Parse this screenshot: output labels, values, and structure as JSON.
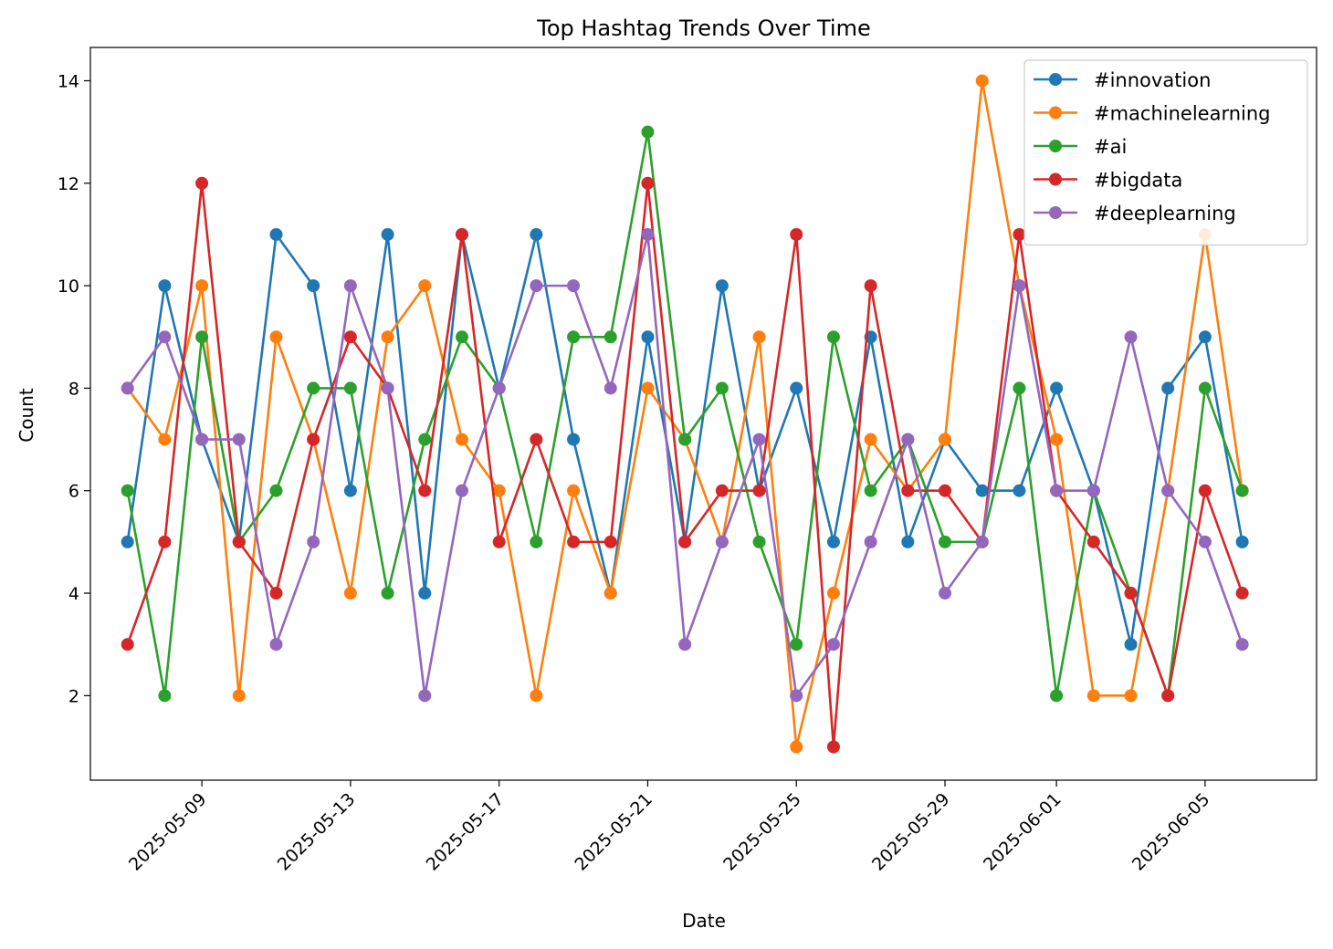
{
  "chart_data": {
    "type": "line",
    "title": "Top Hashtag Trends Over Time",
    "xlabel": "Date",
    "ylabel": "Count",
    "x": [
      "2025-05-07",
      "2025-05-08",
      "2025-05-09",
      "2025-05-10",
      "2025-05-11",
      "2025-05-12",
      "2025-05-13",
      "2025-05-14",
      "2025-05-15",
      "2025-05-16",
      "2025-05-17",
      "2025-05-18",
      "2025-05-19",
      "2025-05-20",
      "2025-05-21",
      "2025-05-22",
      "2025-05-23",
      "2025-05-24",
      "2025-05-25",
      "2025-05-26",
      "2025-05-27",
      "2025-05-28",
      "2025-05-29",
      "2025-05-30",
      "2025-05-31",
      "2025-06-01",
      "2025-06-02",
      "2025-06-03",
      "2025-06-04",
      "2025-06-05",
      "2025-06-06"
    ],
    "xticks": [
      "2025-05-09",
      "2025-05-13",
      "2025-05-17",
      "2025-05-21",
      "2025-05-25",
      "2025-05-29",
      "2025-06-01",
      "2025-06-05"
    ],
    "xlim": [
      "2025-05-06",
      "2025-06-08"
    ],
    "yticks": [
      2,
      4,
      6,
      8,
      10,
      12,
      14
    ],
    "ylim": [
      0.35,
      14.65
    ],
    "grid": false,
    "legend_position": "top-right",
    "series": [
      {
        "name": "#innovation",
        "color": "#1f77b4",
        "values": [
          5,
          10,
          7,
          5,
          11,
          10,
          6,
          11,
          4,
          11,
          8,
          11,
          7,
          4,
          9,
          5,
          10,
          6,
          8,
          5,
          9,
          5,
          7,
          6,
          6,
          8,
          6,
          3,
          8,
          9,
          5
        ]
      },
      {
        "name": "#machinelearning",
        "color": "#ff7f0e",
        "values": [
          8,
          7,
          10,
          2,
          9,
          7,
          4,
          9,
          10,
          7,
          6,
          2,
          6,
          4,
          8,
          7,
          5,
          9,
          1,
          4,
          7,
          6,
          7,
          14,
          10,
          7,
          2,
          2,
          6,
          11,
          6
        ]
      },
      {
        "name": "#ai",
        "color": "#2ca02c",
        "values": [
          6,
          2,
          9,
          5,
          6,
          8,
          8,
          4,
          7,
          9,
          8,
          5,
          9,
          9,
          13,
          7,
          8,
          5,
          3,
          9,
          6,
          7,
          5,
          5,
          8,
          2,
          6,
          4,
          2,
          8,
          6
        ]
      },
      {
        "name": "#bigdata",
        "color": "#d62728",
        "values": [
          3,
          5,
          12,
          5,
          4,
          7,
          9,
          8,
          6,
          11,
          5,
          7,
          5,
          5,
          12,
          5,
          6,
          6,
          11,
          1,
          10,
          6,
          6,
          5,
          11,
          6,
          5,
          4,
          2,
          6,
          4
        ]
      },
      {
        "name": "#deeplearning",
        "color": "#9467bd",
        "values": [
          8,
          9,
          7,
          7,
          3,
          5,
          10,
          8,
          2,
          6,
          8,
          10,
          10,
          8,
          11,
          3,
          5,
          7,
          2,
          3,
          5,
          7,
          4,
          5,
          10,
          6,
          6,
          9,
          6,
          5,
          3
        ]
      }
    ]
  }
}
